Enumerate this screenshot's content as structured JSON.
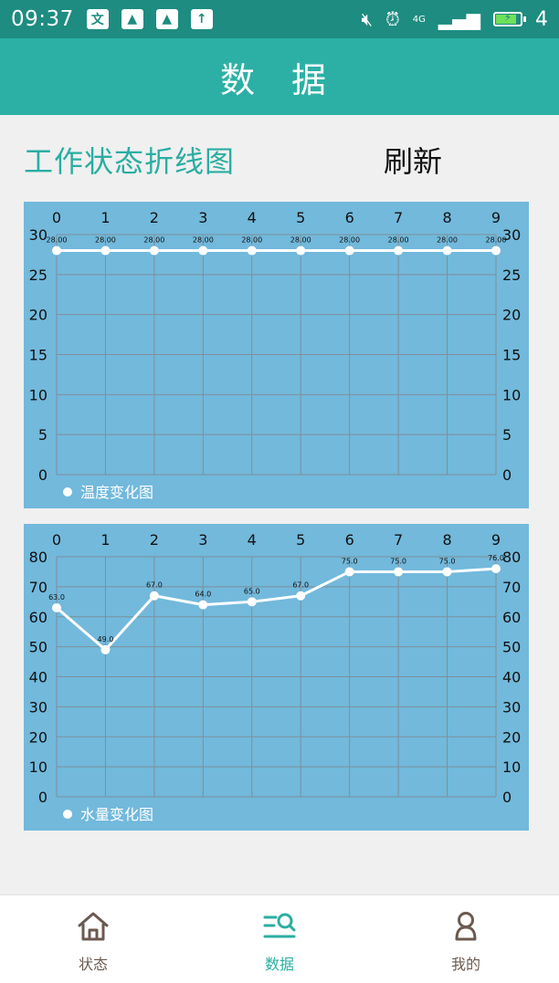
{
  "status_bar": {
    "time": "09:37",
    "network": "4G",
    "battery_level": "4"
  },
  "header": {
    "title": "数 据"
  },
  "section": {
    "title": "工作状态折线图",
    "refresh_label": "刷新"
  },
  "chart_data": [
    {
      "type": "line",
      "x": [
        0,
        1,
        2,
        3,
        4,
        5,
        6,
        7,
        8,
        9
      ],
      "series": [
        {
          "name": "温度变化图",
          "values": [
            28,
            28,
            28,
            28,
            28,
            28,
            28,
            28,
            28,
            28
          ],
          "labels": [
            "28.00",
            "28.00",
            "28.00",
            "28.00",
            "28.00",
            "28.00",
            "28.00",
            "28.00",
            "28.00",
            "28.00"
          ]
        }
      ],
      "ylim": [
        0,
        30
      ],
      "yticks": [
        0,
        5,
        10,
        15,
        20,
        25,
        30
      ],
      "xticks": [
        0,
        1,
        2,
        3,
        4,
        5,
        6,
        7,
        8,
        9
      ],
      "grid": true,
      "legend": "bottom-left",
      "colors": {
        "background": "#72b9dc",
        "line": "#ffffff",
        "grid": "#7e8f99"
      }
    },
    {
      "type": "line",
      "x": [
        0,
        1,
        2,
        3,
        4,
        5,
        6,
        7,
        8,
        9
      ],
      "series": [
        {
          "name": "水量变化图",
          "values": [
            63,
            49,
            67,
            64,
            65,
            67,
            75,
            75,
            75,
            76
          ],
          "labels": [
            "63.0",
            "49.0",
            "67.0",
            "64.0",
            "65.0",
            "67.0",
            "75.0",
            "75.0",
            "75.0",
            "76.0"
          ]
        }
      ],
      "ylim": [
        0,
        80
      ],
      "yticks": [
        0,
        10,
        20,
        30,
        40,
        50,
        60,
        70,
        80
      ],
      "xticks": [
        0,
        1,
        2,
        3,
        4,
        5,
        6,
        7,
        8,
        9
      ],
      "grid": true,
      "legend": "bottom-left",
      "colors": {
        "background": "#72b9dc",
        "line": "#ffffff",
        "grid": "#7e8f99"
      }
    }
  ],
  "bottom_nav": {
    "items": [
      {
        "label": "状态",
        "icon": "home-icon"
      },
      {
        "label": "数据",
        "icon": "data-search-icon",
        "active": true
      },
      {
        "label": "我的",
        "icon": "user-icon"
      }
    ],
    "accent": "#2aaea2",
    "inactive": "#6b5a50"
  }
}
